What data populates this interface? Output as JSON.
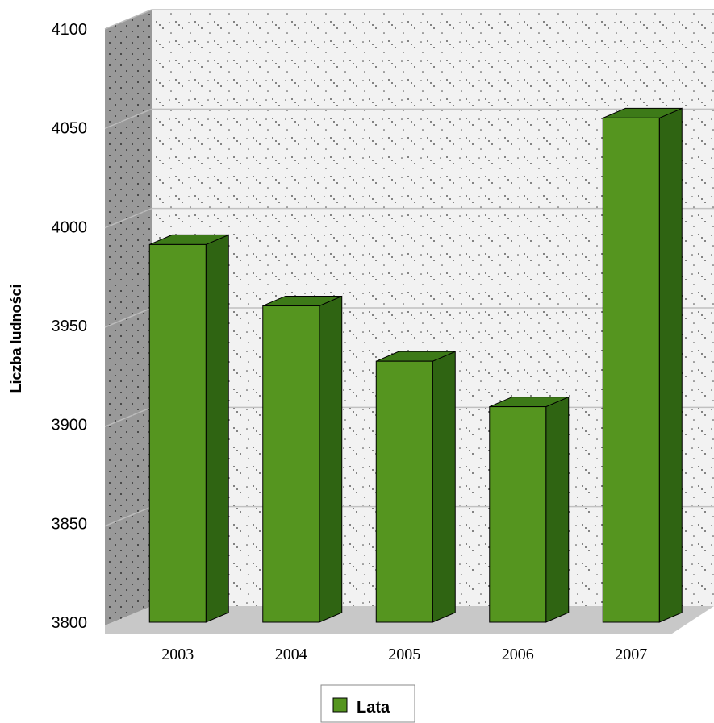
{
  "chart_data": {
    "type": "bar",
    "categories": [
      "2003",
      "2004",
      "2005",
      "2006",
      "2007"
    ],
    "series": [
      {
        "name": "Lata",
        "values": [
          3991,
          3960,
          3932,
          3909,
          4055
        ]
      }
    ],
    "ylabel": "Liczba ludności",
    "xlabel": "",
    "ylim": [
      3800,
      4100
    ],
    "y_ticks": [
      "3800",
      "3850",
      "3900",
      "3950",
      "4000",
      "4050",
      "4100"
    ],
    "grid": true,
    "three_d": true,
    "legend_position": "bottom",
    "colors": {
      "bar_front": "#55951f",
      "bar_side": "#2f6412",
      "bar_top": "#3d7a18",
      "back_wall": "#f2f2f2",
      "side_wall": "#999999",
      "floor": "#c8c8c8",
      "gridline": "#c0c0c0"
    }
  }
}
